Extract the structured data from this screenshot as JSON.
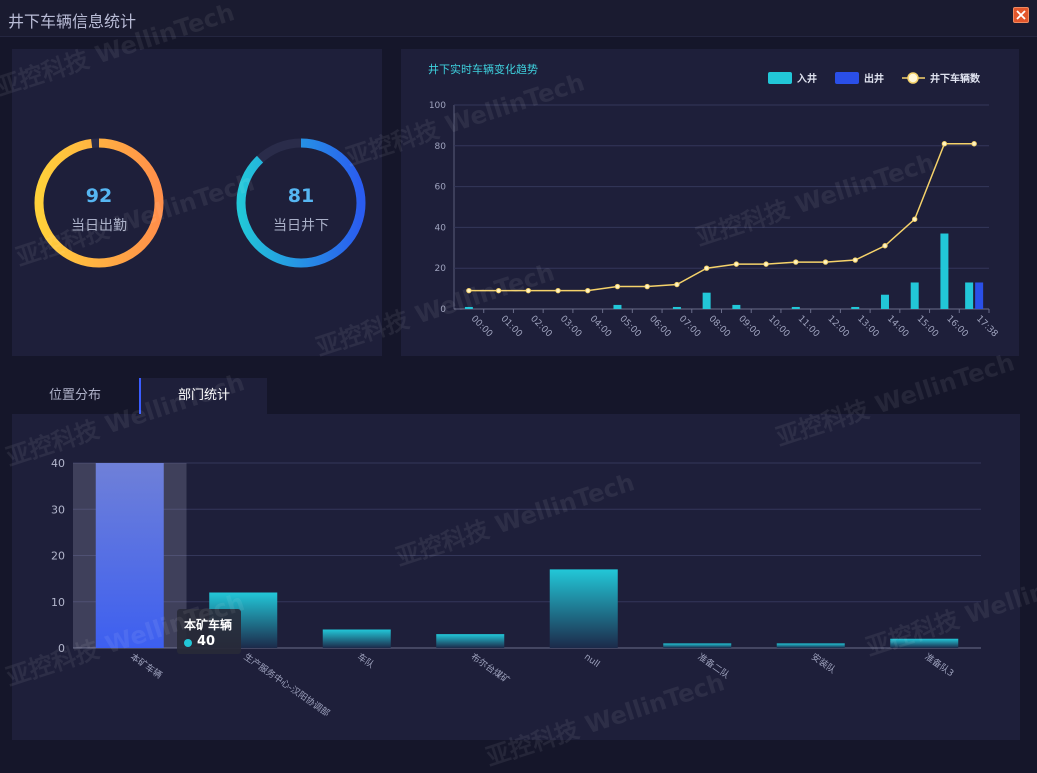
{
  "window": {
    "title": "井下车辆信息统计"
  },
  "gauges": [
    {
      "value": "92",
      "label": "当日出勤",
      "fraction": 0.98,
      "color_start": "#ffd13a",
      "color_end": "#ff8f4a"
    },
    {
      "value": "81",
      "label": "当日井下",
      "fraction": 0.88,
      "color_start": "#22c7d8",
      "color_end": "#2a5cf0"
    }
  ],
  "trend": {
    "title": "井下实时车辆变化趋势",
    "legend": [
      "入井",
      "出井",
      "井下车辆数"
    ],
    "colors": {
      "in": "#22c7d8",
      "out": "#2a4fe8",
      "line": "#f5d26a"
    }
  },
  "tabs": [
    {
      "label": "位置分布",
      "active": false
    },
    {
      "label": "部门统计",
      "active": true
    }
  ],
  "tooltip": {
    "title": "本矿车辆",
    "value": "40"
  },
  "watermark": "亚控科技 WellinTech",
  "chart_data": [
    {
      "type": "bar+line",
      "title": "井下实时车辆变化趋势",
      "x": [
        "00:00",
        "01:00",
        "02:00",
        "03:00",
        "04:00",
        "05:00",
        "06:00",
        "07:00",
        "08:00",
        "09:00",
        "10:00",
        "11:00",
        "12:00",
        "13:00",
        "14:00",
        "15:00",
        "16:00",
        "17:38"
      ],
      "series": [
        {
          "name": "入井",
          "type": "bar",
          "values": [
            1,
            0,
            0,
            0,
            0,
            2,
            0,
            1,
            8,
            2,
            0,
            1,
            0,
            1,
            7,
            13,
            37,
            13
          ]
        },
        {
          "name": "出井",
          "type": "bar",
          "values": [
            0,
            0,
            0,
            0,
            0,
            0,
            0,
            0,
            0,
            0,
            0,
            0,
            0,
            0,
            0,
            0,
            0,
            13
          ]
        },
        {
          "name": "井下车辆数",
          "type": "line",
          "values": [
            9,
            9,
            9,
            9,
            9,
            11,
            11,
            12,
            20,
            22,
            22,
            23,
            23,
            24,
            31,
            44,
            81,
            81
          ]
        }
      ],
      "ylim": [
        0,
        100
      ],
      "yticks": [
        0,
        20,
        40,
        60,
        80,
        100
      ],
      "legend_position": "top-right",
      "grid": true
    },
    {
      "type": "bar",
      "categories": [
        "本矿车辆",
        "生产服务中心-汉阳协调部",
        "车队",
        "布尔台煤矿",
        "null",
        "准备二队",
        "安装队",
        "准备队3"
      ],
      "values": [
        40,
        12,
        4,
        3,
        17,
        1,
        1,
        2
      ],
      "ylim": [
        0,
        40
      ],
      "yticks": [
        0,
        10,
        20,
        30,
        40
      ],
      "highlighted": "本矿车辆",
      "grid": true
    }
  ]
}
